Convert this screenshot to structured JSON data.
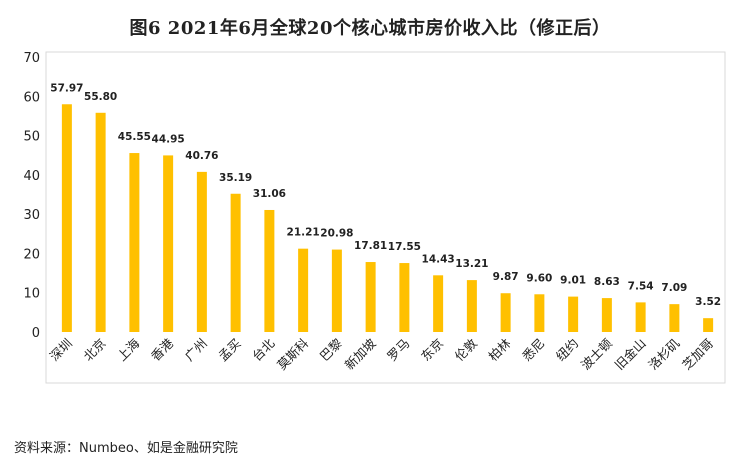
{
  "title": "图6 2021年6月全球20个核心城市房价收入比（修正后）",
  "source": "资料来源：Numbeo、如是金融研究院",
  "colors": {
    "bar": "#FFC000",
    "frame": "#D9D9D9",
    "text": "#222222"
  },
  "chart_data": {
    "type": "bar",
    "categories": [
      "深圳",
      "北京",
      "上海",
      "香港",
      "广州",
      "孟买",
      "台北",
      "莫斯科",
      "巴黎",
      "新加坡",
      "罗马",
      "东京",
      "伦敦",
      "柏林",
      "悉尼",
      "纽约",
      "波士顿",
      "旧金山",
      "洛杉矶",
      "芝加哥"
    ],
    "values": [
      57.97,
      55.8,
      45.55,
      44.95,
      40.76,
      35.19,
      31.06,
      21.21,
      20.98,
      17.81,
      17.55,
      14.43,
      13.21,
      9.87,
      9.6,
      9.01,
      8.63,
      7.54,
      7.09,
      3.52
    ],
    "value_labels": [
      "57.97",
      "55.80",
      "45.55",
      "44.95",
      "40.76",
      "35.19",
      "31.06",
      "21.21",
      "20.98",
      "17.81",
      "17.55",
      "14.43",
      "13.21",
      "9.87",
      "9.60",
      "9.01",
      "8.63",
      "7.54",
      "7.09",
      "3.52"
    ],
    "ylim": [
      0,
      70
    ],
    "yticks": [
      0,
      10,
      20,
      30,
      40,
      50,
      60,
      70
    ],
    "xlabel": "",
    "ylabel": "",
    "grid": false,
    "legend": "none"
  }
}
